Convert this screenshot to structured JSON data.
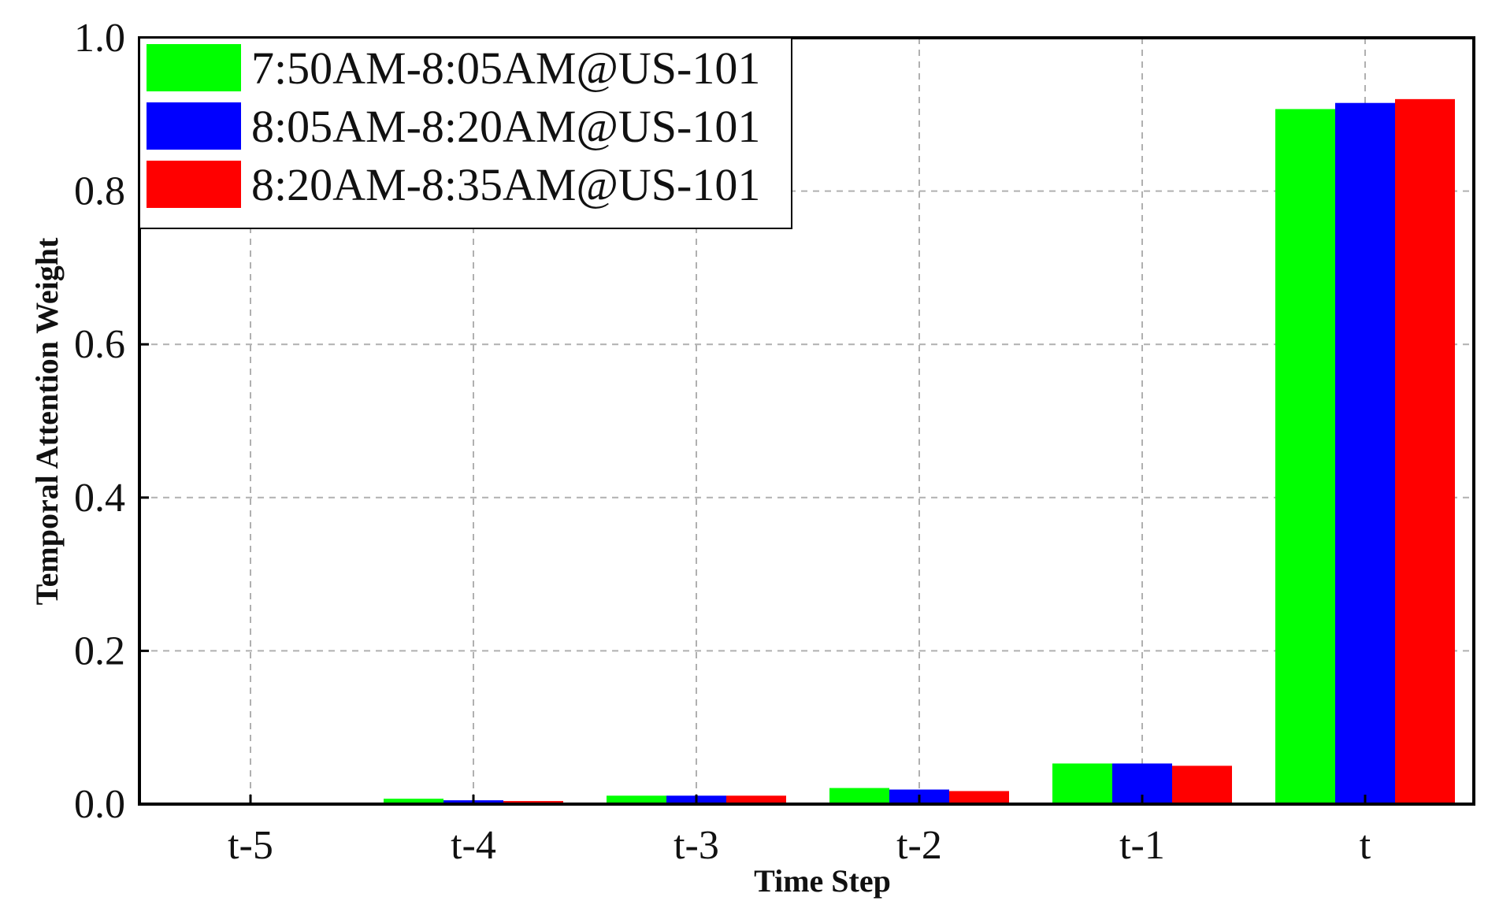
{
  "chart_data": {
    "type": "bar",
    "title": "",
    "xlabel": "Time Step",
    "ylabel": "Temporal Attention Weight",
    "categories": [
      "t-5",
      "t-4",
      "t-3",
      "t-2",
      "t-1",
      "t"
    ],
    "series": [
      {
        "name": "7:50AM-8:05AM@US-101",
        "color": "#00ff00",
        "values": [
          0.0,
          0.007,
          0.011,
          0.021,
          0.053,
          0.907
        ]
      },
      {
        "name": "8:05AM-8:20AM@US-101",
        "color": "#0000ff",
        "values": [
          0.0,
          0.005,
          0.011,
          0.019,
          0.053,
          0.915
        ]
      },
      {
        "name": "8:20AM-8:35AM@US-101",
        "color": "#ff0000",
        "values": [
          0.0,
          0.004,
          0.011,
          0.017,
          0.05,
          0.92
        ]
      }
    ],
    "ylim": [
      0.0,
      1.0
    ],
    "yticks": [
      "0.0",
      "0.2",
      "0.4",
      "0.6",
      "0.8",
      "1.0"
    ],
    "grid": true,
    "legend_position": "top-left"
  }
}
